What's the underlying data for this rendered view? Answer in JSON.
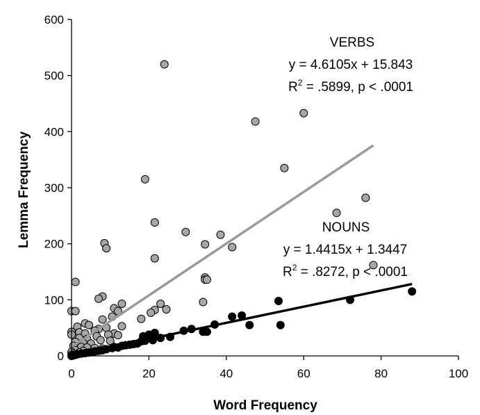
{
  "chart_data": {
    "type": "scatter",
    "title": "",
    "xlabel": "Word Frequency",
    "ylabel": "Lemma Frequency",
    "xlim": [
      0,
      100
    ],
    "ylim": [
      0,
      600
    ],
    "xticks": [
      "0",
      "20",
      "40",
      "60",
      "80",
      "100"
    ],
    "yticks": [
      "0",
      "100",
      "200",
      "300",
      "400",
      "500",
      "600"
    ],
    "grid": false,
    "series": [
      {
        "name": "VERBS",
        "color": "#a6a6a6",
        "line_color": "#999999",
        "trendline": {
          "slope": 4.6105,
          "intercept": 15.843,
          "x_range": [
            0,
            78
          ]
        },
        "annotation": {
          "label": "VERBS",
          "equation": "y = 4.6105x + 15.843",
          "r2_prefix": "R",
          "r2_sup": "2",
          "r2_rest": " = .5899, p < .0001"
        },
        "points": [
          [
            24,
            520
          ],
          [
            60,
            433
          ],
          [
            47.5,
            418
          ],
          [
            55,
            335
          ],
          [
            19,
            315
          ],
          [
            76,
            282
          ],
          [
            68.5,
            255
          ],
          [
            21.5,
            238
          ],
          [
            29.5,
            221
          ],
          [
            38.5,
            216
          ],
          [
            8.5,
            201
          ],
          [
            41.5,
            194
          ],
          [
            9,
            192
          ],
          [
            34.5,
            199
          ],
          [
            21.5,
            174
          ],
          [
            78,
            162
          ],
          [
            34.5,
            140
          ],
          [
            34.5,
            136
          ],
          [
            35,
            136
          ],
          [
            1,
            132
          ],
          [
            34,
            96
          ],
          [
            8,
            106
          ],
          [
            7,
            102
          ],
          [
            13,
            93
          ],
          [
            23,
            93
          ],
          [
            11,
            85
          ],
          [
            24.5,
            83
          ],
          [
            21.5,
            82
          ],
          [
            20.5,
            77
          ],
          [
            12,
            80
          ],
          [
            0,
            80
          ],
          [
            1,
            80
          ],
          [
            10.5,
            70
          ],
          [
            18,
            66
          ],
          [
            8,
            65
          ],
          [
            3.5,
            58
          ],
          [
            4.5,
            55
          ],
          [
            13,
            53
          ],
          [
            9,
            50
          ],
          [
            1.5,
            52
          ],
          [
            7,
            48
          ],
          [
            6,
            45
          ],
          [
            0,
            43
          ],
          [
            2,
            42
          ],
          [
            3.5,
            40
          ],
          [
            11,
            40
          ],
          [
            0,
            38
          ],
          [
            9.5,
            38
          ],
          [
            12,
            37
          ],
          [
            6.5,
            35
          ],
          [
            2,
            32
          ],
          [
            4,
            30
          ],
          [
            7.5,
            28
          ],
          [
            10,
            27
          ],
          [
            1,
            25
          ],
          [
            3,
            23
          ],
          [
            5,
            22
          ],
          [
            0.5,
            18
          ],
          [
            2.5,
            16
          ],
          [
            4,
            15
          ],
          [
            6,
            14
          ],
          [
            8,
            13
          ],
          [
            1,
            10
          ],
          [
            3,
            9
          ],
          [
            0,
            7
          ],
          [
            2,
            6
          ],
          [
            0.5,
            4
          ],
          [
            1.5,
            3
          ],
          [
            0,
            2
          ]
        ]
      },
      {
        "name": "NOUNS",
        "color": "#000000",
        "line_color": "#000000",
        "trendline": {
          "slope": 1.4415,
          "intercept": 1.3447,
          "x_range": [
            0,
            88
          ]
        },
        "annotation": {
          "label": "NOUNS",
          "equation": "y = 1.4415x + 1.3447",
          "r2_prefix": "R",
          "r2_sup": "2",
          "r2_rest": " = .8272, p < .0001"
        },
        "points": [
          [
            88,
            115
          ],
          [
            72,
            100
          ],
          [
            53.5,
            98
          ],
          [
            44,
            72
          ],
          [
            41.5,
            70
          ],
          [
            37,
            56
          ],
          [
            46,
            55
          ],
          [
            54,
            55
          ],
          [
            31,
            48
          ],
          [
            29,
            45
          ],
          [
            34,
            43
          ],
          [
            35,
            43
          ],
          [
            25.5,
            34
          ],
          [
            23,
            32
          ],
          [
            21.5,
            41
          ],
          [
            20,
            38
          ],
          [
            18.5,
            35
          ],
          [
            21,
            28
          ],
          [
            18,
            26
          ],
          [
            17,
            22
          ],
          [
            15,
            20
          ],
          [
            13,
            18
          ],
          [
            12,
            15
          ],
          [
            10.5,
            14
          ],
          [
            9,
            12
          ],
          [
            8,
            10
          ],
          [
            7,
            9
          ],
          [
            5.5,
            7
          ],
          [
            4.5,
            6
          ],
          [
            3.5,
            5
          ],
          [
            2.5,
            4
          ],
          [
            1.5,
            3
          ],
          [
            1,
            2
          ],
          [
            0.5,
            1
          ],
          [
            0,
            0
          ],
          [
            6,
            8
          ],
          [
            11,
            16
          ],
          [
            14,
            19
          ],
          [
            16,
            21
          ],
          [
            19,
            27
          ]
        ]
      }
    ]
  }
}
